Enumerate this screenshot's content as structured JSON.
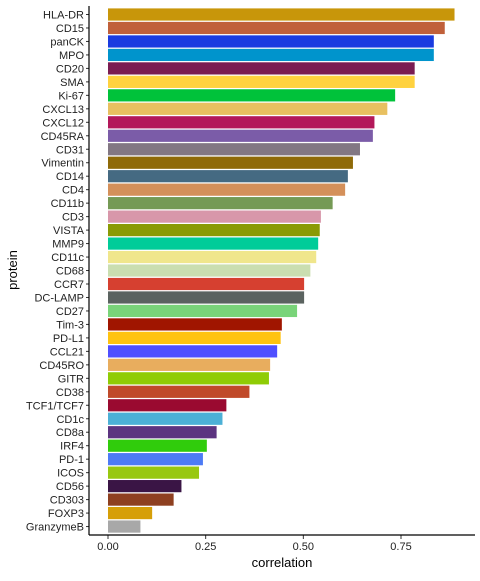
{
  "chart_data": {
    "type": "bar",
    "orientation": "horizontal",
    "xlabel": "correlation",
    "ylabel": "protein",
    "xlim": [
      -0.05,
      0.92
    ],
    "xticks": [
      0.0,
      0.25,
      0.5,
      0.75
    ],
    "xtick_labels": [
      "0.00",
      "0.25",
      "0.50",
      "0.75"
    ],
    "grid": false,
    "legend": "none",
    "categories": [
      "HLA-DR",
      "CD15",
      "panCK",
      "MPO",
      "CD20",
      "SMA",
      "Ki-67",
      "CXCL13",
      "CXCL12",
      "CD45RA",
      "CD31",
      "Vimentin",
      "CD14",
      "CD4",
      "CD11b",
      "CD3",
      "VISTA",
      "MMP9",
      "CD11c",
      "CD68",
      "CCR7",
      "DC-LAMP",
      "CD27",
      "Tim-3",
      "PD-L1",
      "CCL21",
      "CD45RO",
      "GITR",
      "CD38",
      "TCF1/TCF7",
      "CD1c",
      "CD8a",
      "IRF4",
      "PD-1",
      "ICOS",
      "CD56",
      "CD303",
      "FOXP3",
      "GranzymeB"
    ],
    "values": [
      0.887,
      0.862,
      0.834,
      0.834,
      0.785,
      0.785,
      0.735,
      0.715,
      0.682,
      0.678,
      0.645,
      0.627,
      0.614,
      0.607,
      0.575,
      0.545,
      0.542,
      0.538,
      0.533,
      0.518,
      0.502,
      0.502,
      0.484,
      0.445,
      0.442,
      0.433,
      0.415,
      0.412,
      0.362,
      0.303,
      0.293,
      0.278,
      0.253,
      0.243,
      0.233,
      0.188,
      0.168,
      0.113,
      0.083
    ],
    "colors": [
      "#C8960A",
      "#C0603A",
      "#1A3BE0",
      "#0094CC",
      "#7A1C52",
      "#FFD23F",
      "#00C23A",
      "#E8C060",
      "#B3185A",
      "#7B5CA8",
      "#827783",
      "#8F6A08",
      "#456A82",
      "#D4905A",
      "#759A55",
      "#D897AA",
      "#8A9A05",
      "#00CC99",
      "#F0E68C",
      "#CADEB0",
      "#D64030",
      "#5B6360",
      "#79D479",
      "#A01500",
      "#FFC310",
      "#4F4FFF",
      "#E8AD5E",
      "#8FCC05",
      "#C04A2A",
      "#9A0A30",
      "#4CB0D6",
      "#5C3480",
      "#30CC0C",
      "#4D7BF5",
      "#98C810",
      "#3A1545",
      "#8E4020",
      "#D69F08",
      "#A8A8A8"
    ]
  }
}
